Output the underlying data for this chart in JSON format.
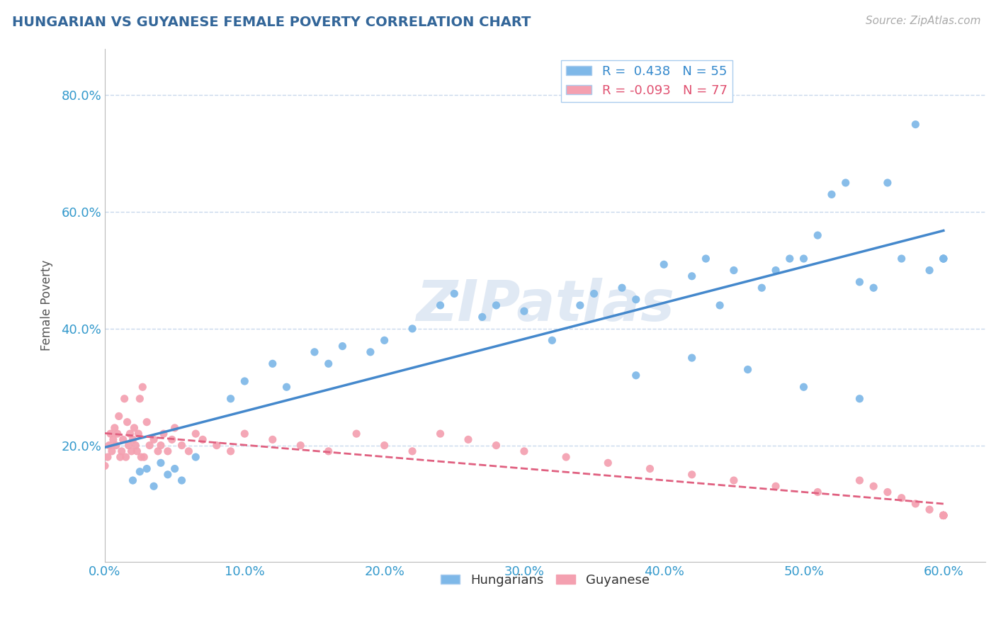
{
  "title": "HUNGARIAN VS GUYANESE FEMALE POVERTY CORRELATION CHART",
  "source": "Source: ZipAtlas.com",
  "ylabel": "Female Poverty",
  "xlim": [
    0.0,
    0.63
  ],
  "ylim": [
    0.0,
    0.88
  ],
  "xticks": [
    0.0,
    0.1,
    0.2,
    0.3,
    0.4,
    0.5,
    0.6
  ],
  "yticks": [
    0.0,
    0.2,
    0.4,
    0.6,
    0.8
  ],
  "ytick_labels": [
    "",
    "20.0%",
    "40.0%",
    "60.0%",
    "80.0%"
  ],
  "xtick_labels": [
    "0.0%",
    "10.0%",
    "20.0%",
    "30.0%",
    "40.0%",
    "50.0%",
    "60.0%"
  ],
  "hungarian_color": "#7eb8e8",
  "guyanese_color": "#f4a0b0",
  "hungarian_R": 0.438,
  "hungarian_N": 55,
  "guyanese_R": -0.093,
  "guyanese_N": 77,
  "trend_blue": "#4488cc",
  "trend_pink": "#e06080",
  "background_color": "#ffffff",
  "grid_color": "#c8d8ec",
  "watermark": "ZIPatlas",
  "hungarian_x": [
    0.02,
    0.025,
    0.03,
    0.035,
    0.04,
    0.045,
    0.05,
    0.055,
    0.065,
    0.09,
    0.1,
    0.12,
    0.13,
    0.15,
    0.16,
    0.17,
    0.19,
    0.2,
    0.22,
    0.24,
    0.25,
    0.27,
    0.28,
    0.3,
    0.32,
    0.34,
    0.35,
    0.37,
    0.38,
    0.4,
    0.42,
    0.43,
    0.44,
    0.45,
    0.47,
    0.48,
    0.49,
    0.5,
    0.51,
    0.52,
    0.53,
    0.54,
    0.55,
    0.56,
    0.57,
    0.58,
    0.59,
    0.6,
    0.6,
    0.6,
    0.38,
    0.42,
    0.46,
    0.5,
    0.54
  ],
  "hungarian_y": [
    0.14,
    0.155,
    0.16,
    0.13,
    0.17,
    0.15,
    0.16,
    0.14,
    0.18,
    0.28,
    0.31,
    0.34,
    0.3,
    0.36,
    0.34,
    0.37,
    0.36,
    0.38,
    0.4,
    0.44,
    0.46,
    0.42,
    0.44,
    0.43,
    0.38,
    0.44,
    0.46,
    0.47,
    0.45,
    0.51,
    0.49,
    0.52,
    0.44,
    0.5,
    0.47,
    0.5,
    0.52,
    0.52,
    0.56,
    0.63,
    0.65,
    0.48,
    0.47,
    0.65,
    0.52,
    0.75,
    0.5,
    0.52,
    0.52,
    0.52,
    0.32,
    0.35,
    0.33,
    0.3,
    0.28
  ],
  "guyanese_x": [
    0.0,
    0.002,
    0.003,
    0.004,
    0.005,
    0.006,
    0.007,
    0.008,
    0.009,
    0.01,
    0.011,
    0.012,
    0.013,
    0.014,
    0.015,
    0.016,
    0.017,
    0.018,
    0.019,
    0.02,
    0.021,
    0.022,
    0.023,
    0.024,
    0.025,
    0.026,
    0.027,
    0.028,
    0.03,
    0.032,
    0.035,
    0.038,
    0.04,
    0.042,
    0.045,
    0.048,
    0.05,
    0.055,
    0.06,
    0.065,
    0.07,
    0.08,
    0.09,
    0.1,
    0.12,
    0.14,
    0.16,
    0.18,
    0.2,
    0.22,
    0.24,
    0.26,
    0.28,
    0.3,
    0.33,
    0.36,
    0.39,
    0.42,
    0.45,
    0.48,
    0.51,
    0.54,
    0.55,
    0.56,
    0.57,
    0.58,
    0.59,
    0.6,
    0.6,
    0.6,
    0.6,
    0.6,
    0.6,
    0.6,
    0.6,
    0.6,
    0.6
  ],
  "guyanese_y": [
    0.165,
    0.18,
    0.2,
    0.22,
    0.19,
    0.21,
    0.23,
    0.2,
    0.22,
    0.25,
    0.18,
    0.19,
    0.21,
    0.28,
    0.18,
    0.24,
    0.2,
    0.22,
    0.19,
    0.21,
    0.23,
    0.2,
    0.19,
    0.22,
    0.28,
    0.18,
    0.3,
    0.18,
    0.24,
    0.2,
    0.21,
    0.19,
    0.2,
    0.22,
    0.19,
    0.21,
    0.23,
    0.2,
    0.19,
    0.22,
    0.21,
    0.2,
    0.19,
    0.22,
    0.21,
    0.2,
    0.19,
    0.22,
    0.2,
    0.19,
    0.22,
    0.21,
    0.2,
    0.19,
    0.18,
    0.17,
    0.16,
    0.15,
    0.14,
    0.13,
    0.12,
    0.14,
    0.13,
    0.12,
    0.11,
    0.1,
    0.09,
    0.08,
    0.08,
    0.08,
    0.08,
    0.08,
    0.08,
    0.08,
    0.08,
    0.08,
    0.08
  ]
}
